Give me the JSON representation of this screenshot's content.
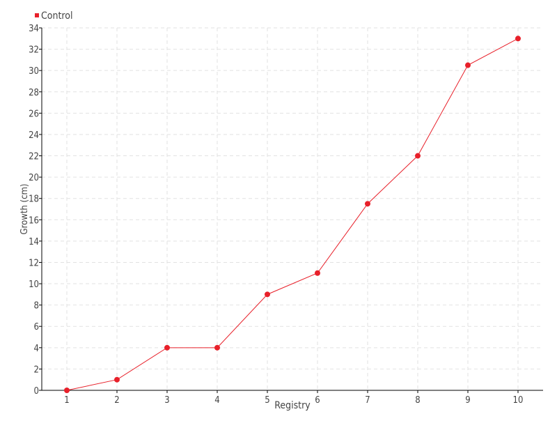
{
  "chart_data": {
    "type": "line",
    "title": "",
    "xlabel": "Registry",
    "ylabel": "Growth (cm)",
    "categories": [
      "1",
      "2",
      "3",
      "4",
      "5",
      "6",
      "7",
      "8",
      "9",
      "10"
    ],
    "series": [
      {
        "name": "Control",
        "values": [
          0,
          1,
          4,
          4,
          9,
          11,
          17.5,
          22,
          30.5,
          33
        ],
        "color": "#e8202a"
      }
    ],
    "ylim": [
      0,
      34
    ],
    "yticks": [
      0,
      2,
      4,
      6,
      8,
      10,
      12,
      14,
      16,
      18,
      20,
      22,
      24,
      26,
      28,
      30,
      32,
      34
    ],
    "grid": true,
    "legend": "top-left"
  }
}
